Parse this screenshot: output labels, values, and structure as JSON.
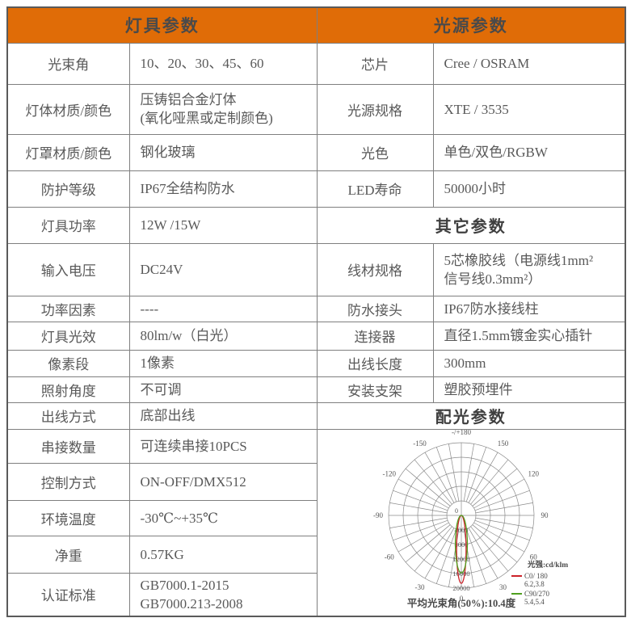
{
  "colors": {
    "accent_orange": "#e06c07",
    "grid_border": "#7f7f7f",
    "text_gray": "#595959",
    "series_red": "#cc2229",
    "series_green": "#4f9f1e"
  },
  "table": {
    "headers": {
      "left": "灯具参数",
      "right": "光源参数"
    },
    "sections": {
      "other": "其它参数",
      "distribution": "配光参数"
    },
    "left_rows": [
      {
        "label": "光束角",
        "value": "10、20、30、45、60"
      },
      {
        "label": "灯体材质/颜色",
        "value": "压铸铝合金灯体\n(氧化哑黑或定制颜色)"
      },
      {
        "label": "灯罩材质/颜色",
        "value": "钢化玻璃"
      },
      {
        "label": "防护等级",
        "value": "IP67全结构防水"
      },
      {
        "label": "灯具功率",
        "value": "12W /15W"
      },
      {
        "label": "输入电压",
        "value": "DC24V"
      },
      {
        "label": "功率因素",
        "value": "----"
      },
      {
        "label": "灯具光效",
        "value": "80lm/w（白光）"
      },
      {
        "label": "像素段",
        "value": "1像素"
      },
      {
        "label": "照射角度",
        "value": "不可调"
      },
      {
        "label": "出线方式",
        "value": "底部出线"
      },
      {
        "label": "串接数量",
        "value": "可连续串接10PCS"
      },
      {
        "label": "控制方式",
        "value": "ON-OFF/DMX512"
      },
      {
        "label": "环境温度",
        "value": "-30℃~+35℃"
      },
      {
        "label": "净重",
        "value": "0.57KG"
      },
      {
        "label": "认证标准",
        "value": "GB7000.1-2015\nGB7000.213-2008"
      }
    ],
    "right_rows": [
      {
        "label": "芯片",
        "value": "Cree / OSRAM"
      },
      {
        "label": "光源规格",
        "value": "XTE / 3535"
      },
      {
        "label": "光色",
        "value": "单色/双色/RGBW"
      },
      {
        "label": "LED寿命",
        "value": "50000小时"
      },
      {
        "label": "线材规格",
        "value": "5芯橡胶线（电源线1mm²\n信号线0.3mm²）"
      },
      {
        "label": "防水接头",
        "value": "IP67防水接线柱"
      },
      {
        "label": "连接器",
        "value": "直径1.5mm镀金实心插针"
      },
      {
        "label": "出线长度",
        "value": "300mm"
      },
      {
        "label": "安装支架",
        "value": "塑胶预埋件"
      }
    ]
  },
  "chart_data": {
    "type": "polar_photometric",
    "title": "配光参数",
    "unit_label": "光强:cd/klm",
    "caption": "平均光束角(50%):10.4度",
    "center_label": "0",
    "angle_step_deg": 10,
    "ring_values": [
      4000,
      8000,
      12000,
      16000,
      20000
    ],
    "ring_max": 20000,
    "angle_labels": [
      {
        "deg": 180,
        "label": "-/+180"
      },
      {
        "deg": 150,
        "label": "150"
      },
      {
        "deg": 120,
        "label": "120"
      },
      {
        "deg": 90,
        "label": "90"
      },
      {
        "deg": 60,
        "label": "60"
      },
      {
        "deg": 30,
        "label": "30"
      },
      {
        "deg": 0,
        "label": "0"
      },
      {
        "deg": -30,
        "label": "-30"
      },
      {
        "deg": -60,
        "label": "-60"
      },
      {
        "deg": -90,
        "label": "-90"
      },
      {
        "deg": -120,
        "label": "-120"
      },
      {
        "deg": -150,
        "label": "-150"
      }
    ],
    "series": [
      {
        "name": "C0/ 180",
        "note": "6.2,3.8",
        "color": "#cc2229",
        "peak": 18700,
        "half_width_deg": 4
      },
      {
        "name": "C90/270",
        "note": "5.4,5.4",
        "color": "#4f9f1e",
        "peak": 15800,
        "half_width_deg": 6
      }
    ],
    "legend_position": "right-bottom-inside",
    "grid": true
  }
}
